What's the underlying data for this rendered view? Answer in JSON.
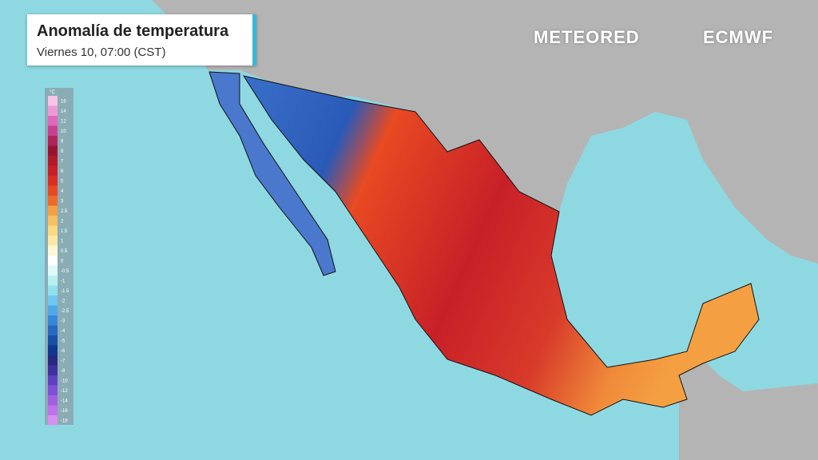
{
  "header": {
    "title": "Anomalía de temperatura",
    "subtitle": "Viernes 10, 07:00 (CST)"
  },
  "logos": {
    "brand": "METEORED",
    "partner": "ECMWF"
  },
  "legend": {
    "unit": "°C",
    "items": [
      {
        "label": "16",
        "color": "#f6c4e6"
      },
      {
        "label": "14",
        "color": "#ee9ad6"
      },
      {
        "label": "12",
        "color": "#e068bc"
      },
      {
        "label": "10",
        "color": "#c84090"
      },
      {
        "label": "9",
        "color": "#b02458"
      },
      {
        "label": "8",
        "color": "#9a1232"
      },
      {
        "label": "7",
        "color": "#b01a2a"
      },
      {
        "label": "6",
        "color": "#c82028"
      },
      {
        "label": "5",
        "color": "#d82e22"
      },
      {
        "label": "4",
        "color": "#e64a22"
      },
      {
        "label": "3",
        "color": "#ee6a2a"
      },
      {
        "label": "2.5",
        "color": "#f4a042"
      },
      {
        "label": "2",
        "color": "#f8c062"
      },
      {
        "label": "1.5",
        "color": "#fbd882"
      },
      {
        "label": "1",
        "color": "#fce8a4"
      },
      {
        "label": "0.5",
        "color": "#fef6d4"
      },
      {
        "label": "0",
        "color": "#ffffff"
      },
      {
        "label": "-0.5",
        "color": "#e0f8f8"
      },
      {
        "label": "-1",
        "color": "#b8f0f0"
      },
      {
        "label": "-1.5",
        "color": "#90e0f0"
      },
      {
        "label": "-2",
        "color": "#70c8f0"
      },
      {
        "label": "-2.5",
        "color": "#50a8e8"
      },
      {
        "label": "-3",
        "color": "#3888d8"
      },
      {
        "label": "-4",
        "color": "#2868c0"
      },
      {
        "label": "-5",
        "color": "#1850a8"
      },
      {
        "label": "-6",
        "color": "#103890"
      },
      {
        "label": "-7",
        "color": "#282880"
      },
      {
        "label": "-8",
        "color": "#4030a0"
      },
      {
        "label": "-10",
        "color": "#6040c0"
      },
      {
        "label": "-12",
        "color": "#8050d8"
      },
      {
        "label": "-14",
        "color": "#a060e0"
      },
      {
        "label": "-16",
        "color": "#c070e8"
      },
      {
        "label": "-18",
        "color": "#d890f0"
      }
    ]
  }
}
